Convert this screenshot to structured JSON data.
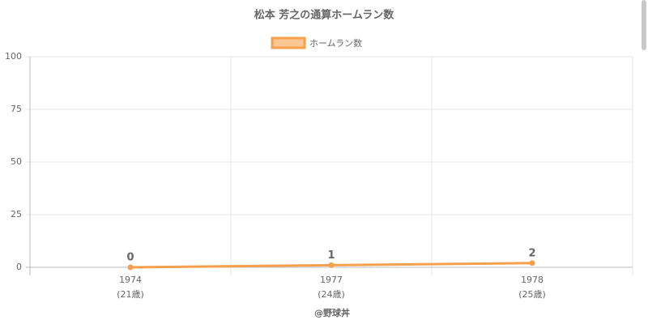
{
  "chart_data": {
    "type": "line",
    "title": "松本 芳之の通算ホームラン数",
    "categories": [
      "1974",
      "1977",
      "1978"
    ],
    "category_sublabels": [
      "(21歳)",
      "(24歳)",
      "(25歳)"
    ],
    "series": [
      {
        "name": "ホームラン数",
        "color": "#f6a04d",
        "values": [
          0,
          1,
          2
        ]
      }
    ],
    "ylim": [
      0,
      100
    ],
    "yticks": [
      0,
      25,
      50,
      75,
      100
    ],
    "grid": true,
    "x_label": "@野球丼",
    "legend": "top"
  }
}
